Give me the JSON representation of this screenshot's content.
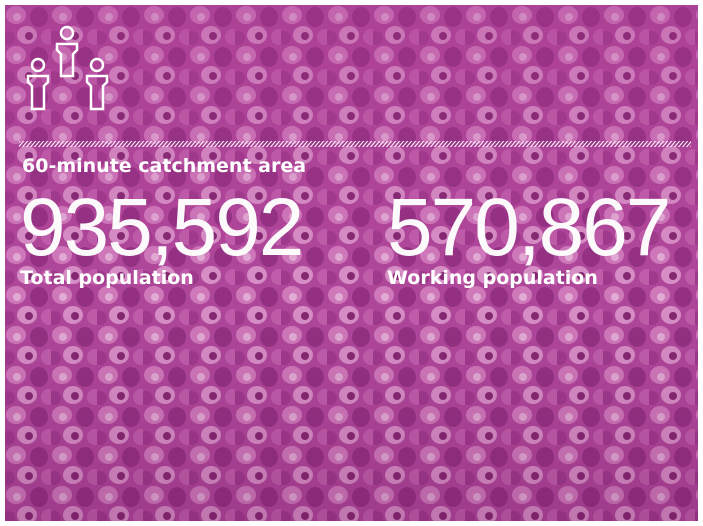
{
  "heading": "60-minute catchment area",
  "stats": [
    {
      "value": "935,592",
      "label": "Total population"
    },
    {
      "value": "570,867",
      "label": "Working population"
    }
  ]
}
